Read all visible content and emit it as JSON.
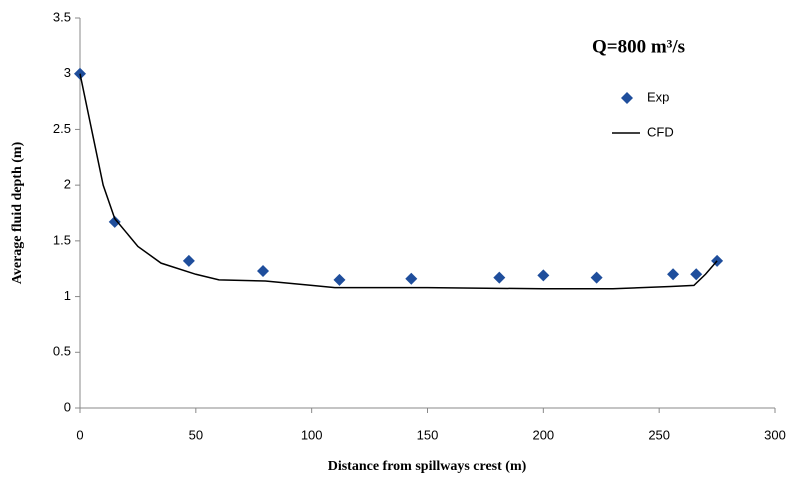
{
  "chart_data": {
    "type": "combo",
    "annotation": "Q=800 m³/s",
    "x_label": "Distance from spillways crest (m)",
    "y_label": "Average fluid depth (m)",
    "xlim": [
      0,
      300
    ],
    "xticks": [
      0,
      50,
      100,
      150,
      200,
      250,
      300
    ],
    "ylim": [
      0,
      3.5
    ],
    "yticks": [
      0,
      0.5,
      1,
      1.5,
      2,
      2.5,
      3,
      3.5
    ],
    "legend": "upper right",
    "series": [
      {
        "name": "Exp",
        "type": "scatter",
        "color": "#1f4e9c",
        "x": [
          0,
          15,
          47,
          79,
          112,
          143,
          181,
          200,
          223,
          256,
          266,
          275
        ],
        "values": [
          3.0,
          1.67,
          1.32,
          1.23,
          1.15,
          1.16,
          1.17,
          1.19,
          1.17,
          1.2,
          1.2,
          1.32
        ]
      },
      {
        "name": "CFD",
        "type": "line",
        "color": "#000000",
        "x": [
          0,
          5,
          10,
          15,
          25,
          35,
          50,
          60,
          80,
          100,
          110,
          150,
          200,
          230,
          255,
          265,
          270,
          275
        ],
        "values": [
          3.0,
          2.5,
          2.0,
          1.7,
          1.45,
          1.3,
          1.2,
          1.15,
          1.14,
          1.1,
          1.08,
          1.08,
          1.07,
          1.07,
          1.09,
          1.1,
          1.2,
          1.32
        ]
      }
    ]
  }
}
